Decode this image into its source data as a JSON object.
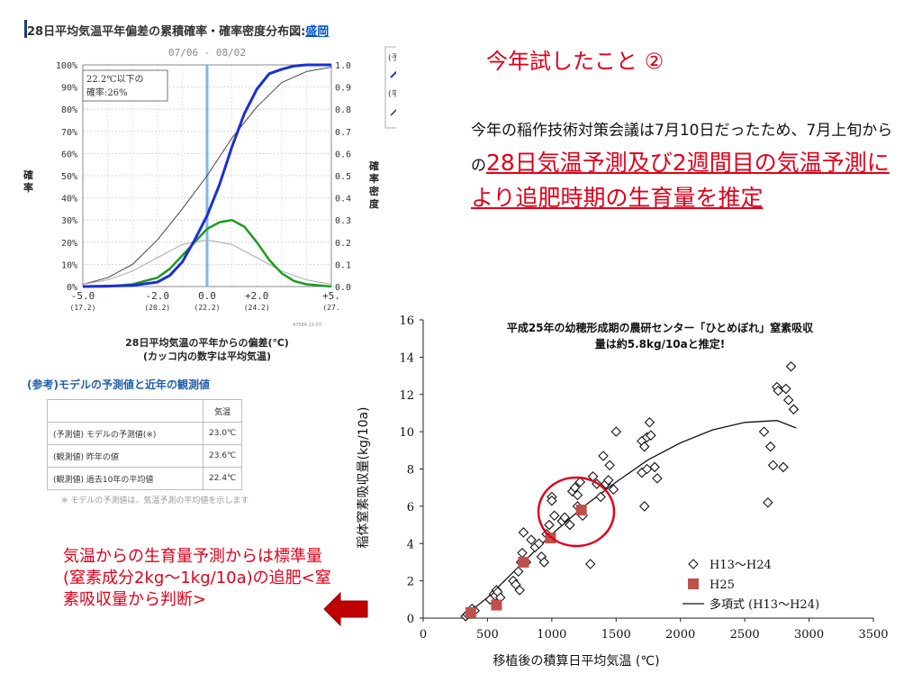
{
  "left_chart": {
    "title": "28日平均気温平年偏差の累積確率・確率密度分布図:",
    "title_highlight": "盛岡",
    "date_range": "07/06 - 08/02",
    "annotation_line1": "22.2℃以下の",
    "annotation_line2": "確率:26%",
    "y_left_ticks": [
      "100%",
      "90%",
      "80%",
      "70%",
      "60%",
      "50%",
      "40%",
      "30%",
      "20%",
      "10%",
      "0%"
    ],
    "y_right_ticks": [
      "1.0",
      "0.9",
      "0.8",
      "0.7",
      "0.6",
      "0.5",
      "0.4",
      "0.3",
      "0.2",
      "0.1",
      "0.0"
    ],
    "y_left_label": "確率",
    "y_right_label": "確率密度",
    "x_ticks": [
      "-5.0",
      "-2.0",
      "0.0",
      "+2.0",
      "+5."
    ],
    "x_subticks": [
      "(17.2)",
      "(20.2)",
      "(22.2)",
      "(24.2)",
      "(27."
    ],
    "x_caption_line1": "28日平均気温の平年からの偏差(℃)",
    "x_caption_line2": "(カッコ内の数字は平均気温)",
    "small_code": "47584 13-07-",
    "legend_fragment_1": "(予",
    "legend_fragment_2": "(平"
  },
  "reference": {
    "heading": "(参考)モデルの予測値と近年の観測値",
    "header_value": "気温",
    "rows": [
      {
        "label": "(予測値) モデルの予測値(※)",
        "value": "23.0℃"
      },
      {
        "label": "(観測値) 昨年の値",
        "value": "23.6℃"
      },
      {
        "label": "(観測値) 過去10年の平均値",
        "value": "22.4℃"
      }
    ],
    "footnote": "※ モデルの予測値は、気温予測の平均値を示します"
  },
  "slide_title": "今年試したこと ②",
  "description": {
    "plain": "今年の稲作技術対策会議は7月10日だったため、7月上旬からの",
    "highlight": "28日気温予測及び2週間目の気温予測により追肥時期の生育量を推定"
  },
  "bottom_note": "気温からの生育量予測からは標準量(窒素成分2kg～1kg/10a)の追肥<窒素吸収量から判断>",
  "colors": {
    "red": "#e0001a",
    "blue_line": "#1a2fd6",
    "green_line": "#1f9a1f",
    "marker": "#c0504d"
  },
  "chart_data": [
    {
      "type": "line",
      "title": "28日平均気温平年偏差の累積確率・確率密度分布図:盛岡",
      "xlabel": "28日平均気温の平年からの偏差(℃)",
      "ylabel": "確率",
      "y2label": "確率密度",
      "xlim": [
        -5,
        5
      ],
      "ylim": [
        0,
        1
      ],
      "vline_x": 0.0,
      "series": [
        {
          "x": [
            -5,
            -4,
            -3,
            -2,
            -1.5,
            -1,
            -0.5,
            0,
            0.5,
            1,
            1.5,
            2,
            2.5,
            3,
            3.5,
            4,
            5
          ],
          "values": [
            0,
            0.002,
            0.005,
            0.02,
            0.05,
            0.11,
            0.21,
            0.32,
            0.46,
            0.63,
            0.78,
            0.89,
            0.96,
            0.98,
            0.995,
            1.0,
            1.0
          ]
        },
        {
          "x": [
            -5,
            -4,
            -3,
            -2,
            -1.5,
            -1,
            -0.5,
            0,
            0.5,
            1,
            1.5,
            2,
            2.5,
            3,
            3.5,
            4,
            5
          ],
          "values": [
            0,
            0,
            0.01,
            0.04,
            0.08,
            0.14,
            0.2,
            0.26,
            0.29,
            0.3,
            0.27,
            0.2,
            0.12,
            0.06,
            0.025,
            0.01,
            0
          ]
        },
        {
          "x": [
            -5,
            -4,
            -3,
            -2,
            -1,
            0,
            1,
            2,
            3,
            4,
            5
          ],
          "values": [
            0.01,
            0.04,
            0.1,
            0.21,
            0.35,
            0.5,
            0.67,
            0.81,
            0.92,
            0.97,
            0.99
          ]
        },
        {
          "x": [
            -5,
            -4,
            -3,
            -2,
            -1,
            0,
            1,
            2,
            3,
            4,
            5
          ],
          "values": [
            0.01,
            0.03,
            0.07,
            0.13,
            0.19,
            0.21,
            0.19,
            0.13,
            0.07,
            0.03,
            0.01
          ]
        }
      ]
    },
    {
      "type": "scatter",
      "title": "平成25年の幼穂形成期の農研センター「ひとめぼれ」窒素吸収量は約5.8kg/10aと推定!",
      "xlabel": "移植後の積算日平均気温 (℃)",
      "ylabel": "稲体窒素吸収量(kg/10a)",
      "xlim": [
        0,
        3500
      ],
      "ylim": [
        0,
        16
      ],
      "x_ticks": [
        0,
        500,
        1000,
        1500,
        2000,
        2500,
        3000,
        3500
      ],
      "y_ticks": [
        0,
        2,
        4,
        6,
        8,
        10,
        12,
        14,
        16
      ],
      "series": [
        {
          "name": "H13～H24",
          "marker": "diamond",
          "x": [
            330,
            345,
            360,
            380,
            400,
            520,
            550,
            560,
            570,
            580,
            600,
            700,
            720,
            740,
            750,
            760,
            770,
            780,
            800,
            840,
            870,
            900,
            920,
            940,
            960,
            980,
            1000,
            1000,
            1020,
            1080,
            1100,
            1140,
            1160,
            1180,
            1200,
            1200,
            1220,
            1240,
            1300,
            1320,
            1350,
            1380,
            1400,
            1420,
            1440,
            1450,
            1480,
            1500,
            1700,
            1700,
            1720,
            1720,
            1740,
            1740,
            1760,
            1770,
            1800,
            1820,
            2650,
            2680,
            2700,
            2720,
            2750,
            2760,
            2800,
            2820,
            2840,
            2860,
            2880
          ],
          "values": [
            0.1,
            0.2,
            0.3,
            0.5,
            0.4,
            1.0,
            1.3,
            1.2,
            1.5,
            1.4,
            1.1,
            2.0,
            1.8,
            2.5,
            1.5,
            3.0,
            3.5,
            4.6,
            3.0,
            4.2,
            3.8,
            4.0,
            3.3,
            3.0,
            4.5,
            5.0,
            6.5,
            6.3,
            5.5,
            5.2,
            5.4,
            5.0,
            6.8,
            7.0,
            6.6,
            6.0,
            7.3,
            5.5,
            2.9,
            7.6,
            7.2,
            6.5,
            8.7,
            7.2,
            7.4,
            8.2,
            6.9,
            10.0,
            9.5,
            7.8,
            9.2,
            6.0,
            8.0,
            9.7,
            10.5,
            9.8,
            8.1,
            7.5,
            10.0,
            6.2,
            9.2,
            8.2,
            12.4,
            12.2,
            8.1,
            12.3,
            11.7,
            13.5,
            11.2
          ]
        },
        {
          "name": "H25",
          "marker": "square",
          "x": [
            370,
            570,
            780,
            990,
            1230
          ],
          "values": [
            0.3,
            0.7,
            3.0,
            4.3,
            5.8
          ]
        },
        {
          "name": "多項式 (H13～H24)",
          "marker": "line",
          "x": [
            300,
            500,
            750,
            1000,
            1250,
            1500,
            1750,
            2000,
            2250,
            2500,
            2750,
            2900
          ],
          "values": [
            0.0,
            1.1,
            2.8,
            4.5,
            6.0,
            7.3,
            8.5,
            9.4,
            10.1,
            10.5,
            10.6,
            10.2
          ]
        }
      ]
    }
  ]
}
